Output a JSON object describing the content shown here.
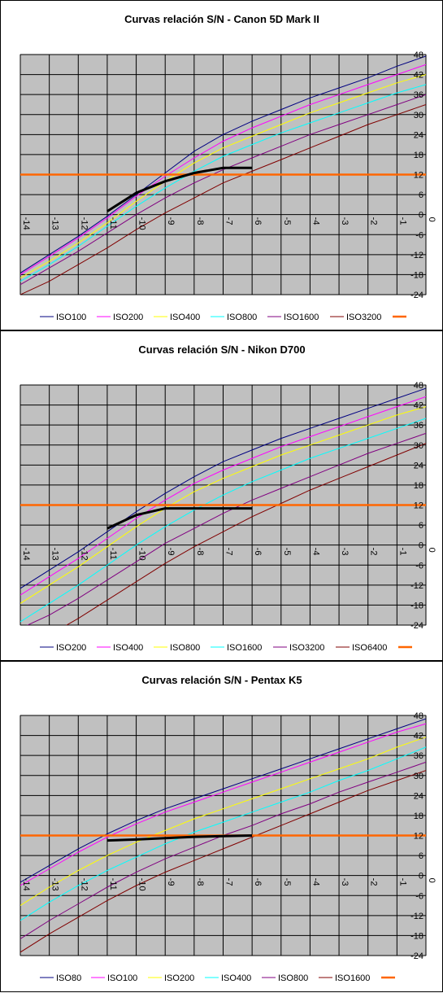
{
  "colors": {
    "plot_bg": "#c0c0c0",
    "grid": "#000000",
    "threshold": "#ff6600",
    "measured": "#000000"
  },
  "chart_data": [
    {
      "type": "line",
      "title": "Curvas relación S/N - Canon 5D Mark II",
      "xlim": [
        -14,
        0
      ],
      "ylim": [
        -24,
        48
      ],
      "x_ticks": [
        -14,
        -13,
        -12,
        -11,
        -10,
        -9,
        -8,
        -7,
        -6,
        -5,
        -4,
        -3,
        -2,
        -1,
        0
      ],
      "y_ticks": [
        -24,
        -18,
        -12,
        -6,
        0,
        6,
        12,
        18,
        24,
        30,
        36,
        42,
        48
      ],
      "grid": true,
      "legend_position": "bottom",
      "series": [
        {
          "name": "ISO100",
          "color": "#000080",
          "x": [
            -14,
            -13,
            -12,
            -11,
            -10,
            -9,
            -8,
            -7,
            -6,
            -5,
            -4,
            -3,
            -2,
            -1,
            0
          ],
          "y": [
            -17.5,
            -12,
            -6.5,
            -0.5,
            6,
            12.5,
            19,
            24,
            28,
            31.5,
            35,
            38,
            41,
            44.5,
            47.5
          ]
        },
        {
          "name": "ISO200",
          "color": "#ff00ff",
          "x": [
            -14,
            -13,
            -12,
            -11,
            -10,
            -9,
            -8,
            -7,
            -6,
            -5,
            -4,
            -3,
            -2,
            -1,
            0
          ],
          "y": [
            -18,
            -12.5,
            -7,
            -1,
            5.5,
            11.5,
            17,
            22,
            26,
            29.5,
            33,
            36,
            39,
            42,
            45
          ]
        },
        {
          "name": "ISO400",
          "color": "#ffff00",
          "x": [
            -14,
            -13,
            -12,
            -11,
            -10,
            -9,
            -8,
            -7,
            -6,
            -5,
            -4,
            -3,
            -2,
            -1,
            0
          ],
          "y": [
            -19,
            -14,
            -8.5,
            -2.5,
            4,
            10,
            15.5,
            20,
            23.5,
            27,
            30.5,
            33.5,
            36.5,
            39.5,
            42
          ]
        },
        {
          "name": "ISO800",
          "color": "#00ffff",
          "x": [
            -14,
            -13,
            -12,
            -11,
            -10,
            -9,
            -8,
            -7,
            -6,
            -5,
            -4,
            -3,
            -2,
            -1,
            0
          ],
          "y": [
            -20,
            -15,
            -9.5,
            -3.5,
            2.5,
            8,
            13,
            17.5,
            21,
            24.5,
            27.5,
            30.5,
            33.5,
            36.5,
            39
          ]
        },
        {
          "name": "ISO1600",
          "color": "#800080",
          "x": [
            -14,
            -13,
            -12,
            -11,
            -10,
            -9,
            -8,
            -7,
            -6,
            -5,
            -4,
            -3,
            -2,
            -1,
            0
          ],
          "y": [
            -21,
            -16,
            -11,
            -5.5,
            0,
            5,
            9.5,
            13.5,
            17,
            20.5,
            24,
            27,
            30,
            33,
            36
          ]
        },
        {
          "name": "ISO3200",
          "color": "#800000",
          "x": [
            -14,
            -13,
            -12,
            -11,
            -10,
            -9,
            -8,
            -7,
            -6,
            -5,
            -4,
            -3,
            -2,
            -1,
            0
          ],
          "y": [
            -24,
            -20,
            -15,
            -10,
            -4.5,
            0.5,
            5,
            9.5,
            13,
            16.5,
            20,
            23.5,
            27,
            30,
            33
          ]
        },
        {
          "name": "",
          "color": "#ff6600",
          "x": [
            -14,
            0
          ],
          "y": [
            12,
            12
          ]
        }
      ],
      "measured": {
        "x": [
          -11,
          -10,
          -9,
          -8,
          -7,
          -6
        ],
        "y": [
          1,
          6.5,
          10,
          12.5,
          14,
          14
        ]
      }
    },
    {
      "type": "line",
      "title": "Curvas relación S/N - Nikon D700",
      "xlim": [
        -14,
        0
      ],
      "ylim": [
        -24,
        48
      ],
      "x_ticks": [
        -14,
        -13,
        -12,
        -11,
        -10,
        -9,
        -8,
        -7,
        -6,
        -5,
        -4,
        -3,
        -2,
        -1,
        0
      ],
      "y_ticks": [
        -24,
        -18,
        -12,
        -6,
        0,
        6,
        12,
        18,
        24,
        30,
        36,
        42,
        48
      ],
      "grid": true,
      "legend_position": "bottom",
      "series": [
        {
          "name": "ISO200",
          "color": "#000080",
          "x": [
            -14,
            -13,
            -12,
            -11,
            -10,
            -9,
            -8,
            -7,
            -6,
            -5,
            -4,
            -3,
            -2,
            -1,
            0
          ],
          "y": [
            -13,
            -7.5,
            -2,
            4,
            10,
            15.5,
            20.5,
            25,
            28.5,
            32,
            35,
            38,
            41,
            44,
            47
          ]
        },
        {
          "name": "ISO400",
          "color": "#ff00ff",
          "x": [
            -14,
            -13,
            -12,
            -11,
            -10,
            -9,
            -8,
            -7,
            -6,
            -5,
            -4,
            -3,
            -2,
            -1,
            0
          ],
          "y": [
            -15,
            -9.5,
            -4,
            2,
            8,
            13.5,
            18.5,
            22.5,
            26,
            29.5,
            32.5,
            35.5,
            38.5,
            41.5,
            44.5
          ]
        },
        {
          "name": "ISO800",
          "color": "#ffff00",
          "x": [
            -14,
            -13,
            -12,
            -11,
            -10,
            -9,
            -8,
            -7,
            -6,
            -5,
            -4,
            -3,
            -2,
            -1,
            0
          ],
          "y": [
            -17.5,
            -12,
            -6.5,
            -0.5,
            5.5,
            11,
            16,
            20,
            23.5,
            27,
            30,
            33,
            36,
            39,
            41.5
          ]
        },
        {
          "name": "ISO1600",
          "color": "#00ffff",
          "x": [
            -14,
            -13,
            -12,
            -11,
            -10,
            -9,
            -8,
            -7,
            -6,
            -5,
            -4,
            -3,
            -2,
            -1,
            0
          ],
          "y": [
            -23,
            -17.5,
            -12,
            -6,
            0,
            5.5,
            10.5,
            15,
            19,
            22.5,
            26,
            29,
            32,
            35,
            38
          ]
        },
        {
          "name": "ISO3200",
          "color": "#800080",
          "x": [
            -14,
            -13,
            -12,
            -11,
            -10,
            -9,
            -8,
            -7,
            -6,
            -5,
            -4,
            -3,
            -2,
            -1,
            0
          ],
          "y": [
            -25,
            -21,
            -16,
            -10.5,
            -5,
            0.5,
            5,
            9.5,
            13.5,
            17,
            20.5,
            24,
            27.5,
            30.5,
            33.5
          ]
        },
        {
          "name": "ISO6400",
          "color": "#800000",
          "x": [
            -14,
            -13,
            -12,
            -11,
            -10,
            -9,
            -8,
            -7,
            -6,
            -5,
            -4,
            -3,
            -2,
            -1,
            0
          ],
          "y": [
            -28,
            -27,
            -22,
            -16.5,
            -11,
            -5.5,
            -0.5,
            4,
            8.5,
            12.5,
            16.5,
            20,
            23.5,
            27,
            30.5
          ]
        },
        {
          "name": "",
          "color": "#ff6600",
          "x": [
            -14,
            0
          ],
          "y": [
            12,
            12
          ]
        }
      ],
      "measured": {
        "x": [
          -11,
          -10,
          -9,
          -8,
          -7,
          -6
        ],
        "y": [
          5,
          9,
          11,
          11,
          11,
          11
        ]
      }
    },
    {
      "type": "line",
      "title": "Curvas relación S/N - Pentax K5",
      "xlim": [
        -14,
        0
      ],
      "ylim": [
        -24,
        48
      ],
      "x_ticks": [
        -14,
        -13,
        -12,
        -11,
        -10,
        -9,
        -8,
        -7,
        -6,
        -5,
        -4,
        -3,
        -2,
        -1,
        0
      ],
      "y_ticks": [
        -24,
        -18,
        -12,
        -6,
        0,
        6,
        12,
        18,
        24,
        30,
        36,
        42,
        48
      ],
      "grid": true,
      "legend_position": "bottom",
      "series": [
        {
          "name": "ISO80",
          "color": "#000080",
          "x": [
            -14,
            -13,
            -12,
            -11,
            -10,
            -9,
            -8,
            -7,
            -6,
            -5,
            -4,
            -3,
            -2,
            -1,
            0
          ],
          "y": [
            -2,
            3,
            8,
            12.5,
            16.5,
            20,
            23,
            26,
            29,
            32,
            35,
            38,
            41,
            44,
            47
          ]
        },
        {
          "name": "ISO100",
          "color": "#ff00ff",
          "x": [
            -14,
            -13,
            -12,
            -11,
            -10,
            -9,
            -8,
            -7,
            -6,
            -5,
            -4,
            -3,
            -2,
            -1,
            0
          ],
          "y": [
            -3,
            2,
            7,
            11.5,
            15.5,
            19,
            22,
            25,
            28,
            31,
            34,
            37,
            40,
            43,
            45.5
          ]
        },
        {
          "name": "ISO200",
          "color": "#ffff00",
          "x": [
            -14,
            -13,
            -12,
            -11,
            -10,
            -9,
            -8,
            -7,
            -6,
            -5,
            -4,
            -3,
            -2,
            -1,
            0
          ],
          "y": [
            -9,
            -3.5,
            1.5,
            6,
            10,
            13.5,
            17,
            20,
            23,
            26,
            29,
            32,
            35,
            38.5,
            41.5
          ]
        },
        {
          "name": "ISO400",
          "color": "#00ffff",
          "x": [
            -14,
            -13,
            -12,
            -11,
            -10,
            -9,
            -8,
            -7,
            -6,
            -5,
            -4,
            -3,
            -2,
            -1,
            0
          ],
          "y": [
            -13.5,
            -8,
            -3,
            1.5,
            5.5,
            9.5,
            13,
            16,
            19,
            22,
            25,
            28.5,
            31.5,
            35,
            38.5
          ]
        },
        {
          "name": "ISO800",
          "color": "#800080",
          "x": [
            -14,
            -13,
            -12,
            -11,
            -10,
            -9,
            -8,
            -7,
            -6,
            -5,
            -4,
            -3,
            -2,
            -1,
            0
          ],
          "y": [
            -19,
            -13.5,
            -8.5,
            -3.5,
            1,
            5,
            8.5,
            12,
            15,
            18.5,
            21.5,
            25,
            28,
            31,
            34
          ]
        },
        {
          "name": "ISO1600",
          "color": "#800000",
          "x": [
            -14,
            -13,
            -12,
            -11,
            -10,
            -9,
            -8,
            -7,
            -6,
            -5,
            -4,
            -3,
            -2,
            -1,
            0
          ],
          "y": [
            -23,
            -17.5,
            -12.5,
            -7.5,
            -3,
            1,
            4.5,
            8,
            11.5,
            15,
            18.5,
            22,
            25.5,
            28.5,
            31.5
          ]
        },
        {
          "name": "",
          "color": "#ff6600",
          "x": [
            -14,
            0
          ],
          "y": [
            12,
            12
          ]
        }
      ],
      "measured": {
        "x": [
          -11,
          -10,
          -9,
          -8,
          -7,
          -6
        ],
        "y": [
          10.5,
          10.8,
          11.2,
          11.6,
          11.8,
          12
        ]
      }
    }
  ]
}
